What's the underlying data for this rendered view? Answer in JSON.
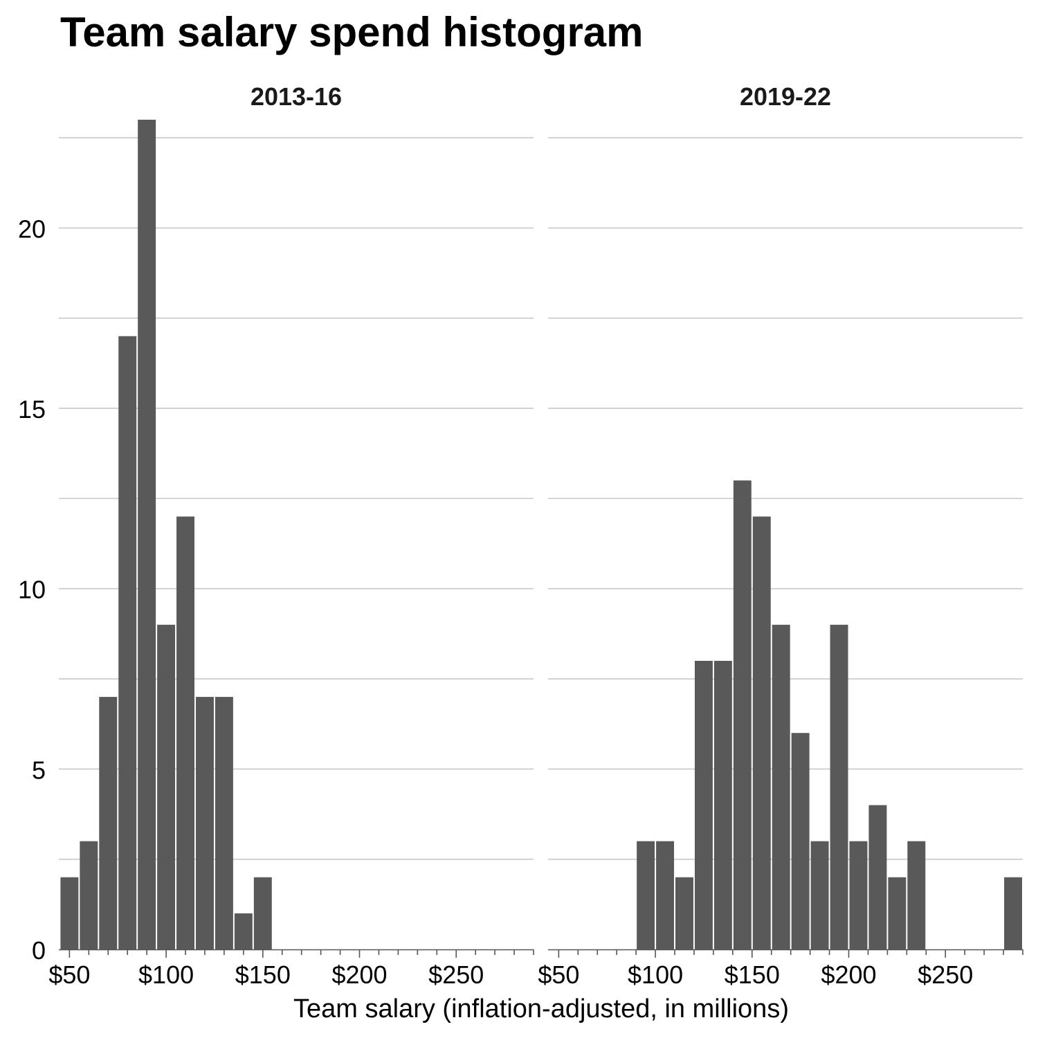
{
  "chart_data": {
    "type": "bar",
    "title": "Team salary spend histogram",
    "xlabel": "Team salary (inflation-adjusted, in millions)",
    "ylabel": "",
    "ylim": [
      0,
      23
    ],
    "yticks": [
      "0",
      "5",
      "10",
      "15",
      "20"
    ],
    "ytick_values": [
      0,
      5,
      10,
      15,
      20
    ],
    "xlim": [
      44.5,
      290
    ],
    "xticks": [
      "$50",
      "$100",
      "$150",
      "$200",
      "$250"
    ],
    "xtick_values": [
      50,
      100,
      150,
      200,
      250
    ],
    "bin_width": 10,
    "bar_color": "#595959",
    "grid": true,
    "panels": [
      {
        "label": "2013-16",
        "bin_centers": [
          50,
          60,
          70,
          80,
          90,
          100,
          110,
          120,
          130,
          140,
          150
        ],
        "counts": [
          2,
          3,
          7,
          17,
          23,
          9,
          12,
          7,
          7,
          1,
          2
        ]
      },
      {
        "label": "2019-22",
        "bin_centers": [
          95,
          105,
          115,
          125,
          135,
          145,
          155,
          165,
          175,
          185,
          195,
          205,
          215,
          225,
          235,
          285
        ],
        "counts": [
          3,
          3,
          2,
          8,
          8,
          13,
          12,
          9,
          6,
          3,
          9,
          3,
          4,
          2,
          3,
          2
        ]
      }
    ]
  }
}
